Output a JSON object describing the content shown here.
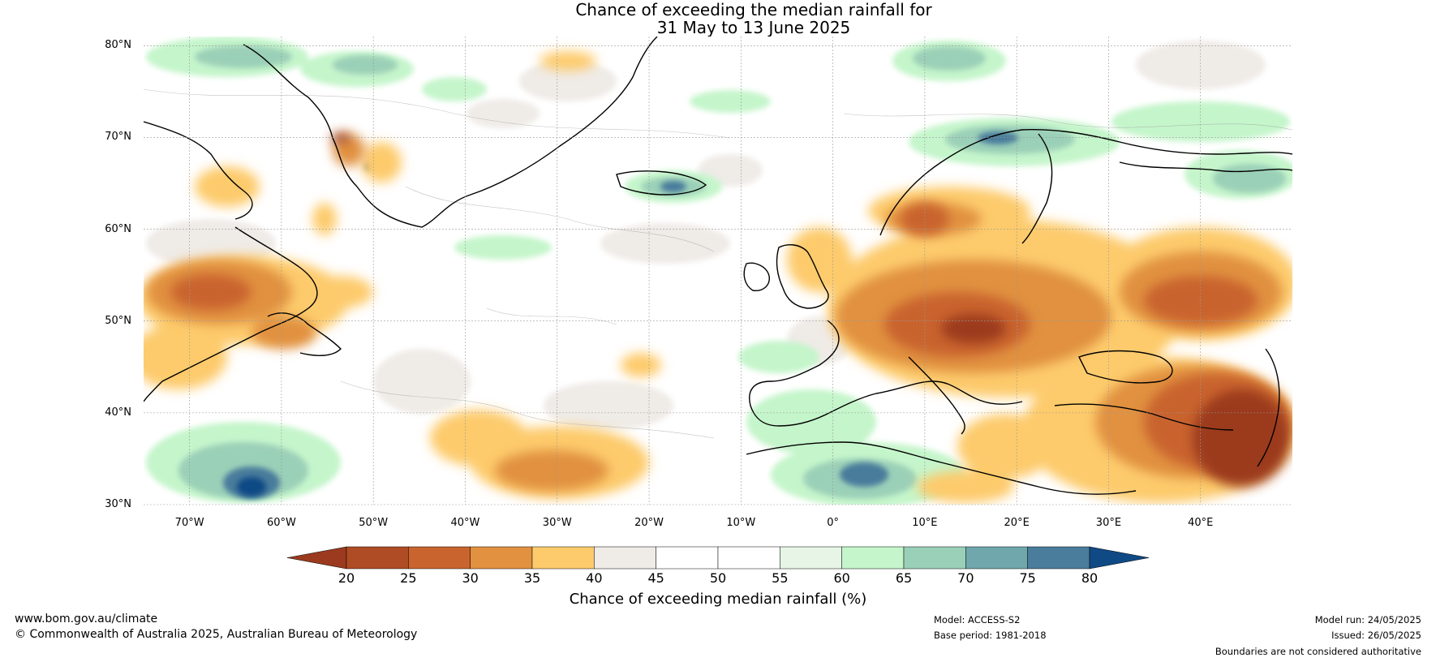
{
  "header": {
    "title_line1": "Chance of exceeding the median rainfall for",
    "title_line2": "31 May to 13 June 2025"
  },
  "map": {
    "lat_labels": [
      "80°N",
      "70°N",
      "60°N",
      "50°N",
      "40°N",
      "30°N"
    ],
    "lon_labels": [
      "70°W",
      "60°W",
      "50°W",
      "40°W",
      "30°W",
      "20°W",
      "10°W",
      "0°",
      "10°E",
      "20°E",
      "30°E",
      "40°E"
    ],
    "lat_values": [
      80,
      70,
      60,
      50,
      40,
      30
    ],
    "lon_values": [
      -70,
      -60,
      -50,
      -40,
      -30,
      -20,
      -10,
      0,
      10,
      20,
      30,
      40
    ],
    "extent": {
      "lon_min": -75,
      "lon_max": 50,
      "lat_min": 30,
      "lat_max": 81
    },
    "gridlines": true
  },
  "colorbar": {
    "ticks": [
      "20",
      "25",
      "30",
      "35",
      "40",
      "45",
      "50",
      "55",
      "60",
      "65",
      "70",
      "75",
      "80"
    ],
    "colors": [
      "#9b3a1e",
      "#b04c25",
      "#c9642e",
      "#e1913f",
      "#fdcb6c",
      "#efebe7",
      "#ffffff",
      "#ffffff",
      "#e6f5e6",
      "#c5f5cb",
      "#9bd0b8",
      "#6fa7ac",
      "#4a7c9b",
      "#0f4a85"
    ],
    "label": "Chance of exceeding median rainfall (%)",
    "extend": "both"
  },
  "footer": {
    "url": "www.bom.gov.au/climate",
    "copyright": "© Commonwealth of Australia 2025, Australian Bureau of Meteorology",
    "model": "Model: ACCESS-S2",
    "base_period": "Base period: 1981-2018",
    "model_run": "Model run: 24/05/2025",
    "issued": "Issued: 26/05/2025",
    "disclaimer": "Boundaries are not considered authoritative"
  }
}
